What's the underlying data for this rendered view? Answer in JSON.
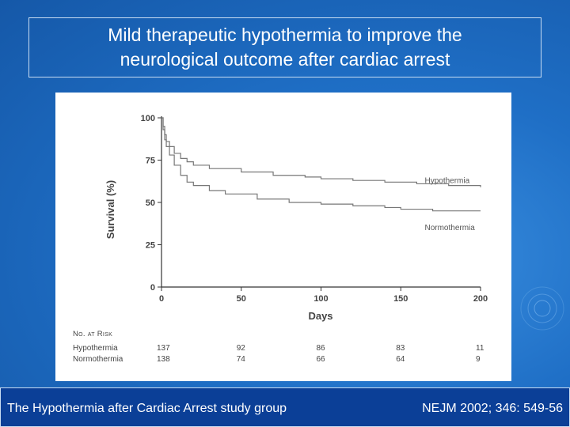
{
  "title": {
    "line1": "Mild therapeutic hypothermia to improve the",
    "line2": "neurological outcome  after cardiac arrest"
  },
  "footer": {
    "left": "The Hypothermia after Cardiac Arrest study group",
    "right": "NEJM 2002; 346: 549-56"
  },
  "chart_data": {
    "type": "line",
    "xlabel": "Days",
    "ylabel": "Survival (%)",
    "xlim": [
      0,
      200
    ],
    "ylim": [
      0,
      100
    ],
    "x_ticks": [
      0,
      50,
      100,
      150,
      200
    ],
    "y_ticks": [
      0,
      25,
      50,
      75,
      100
    ],
    "grid": false,
    "series": [
      {
        "name": "Hypothermia",
        "color": "#777777",
        "points": [
          [
            0,
            100
          ],
          [
            1,
            95
          ],
          [
            2,
            90
          ],
          [
            3,
            86
          ],
          [
            5,
            83
          ],
          [
            8,
            79
          ],
          [
            12,
            76
          ],
          [
            16,
            74
          ],
          [
            20,
            72
          ],
          [
            30,
            70
          ],
          [
            50,
            68
          ],
          [
            70,
            66
          ],
          [
            90,
            65
          ],
          [
            100,
            64
          ],
          [
            120,
            63
          ],
          [
            140,
            62
          ],
          [
            160,
            61
          ],
          [
            180,
            60
          ],
          [
            200,
            59
          ]
        ]
      },
      {
        "name": "Normothermia",
        "color": "#777777",
        "points": [
          [
            0,
            100
          ],
          [
            1,
            93
          ],
          [
            2,
            87
          ],
          [
            3,
            83
          ],
          [
            5,
            78
          ],
          [
            8,
            72
          ],
          [
            12,
            66
          ],
          [
            16,
            62
          ],
          [
            20,
            60
          ],
          [
            30,
            57
          ],
          [
            40,
            55
          ],
          [
            60,
            52
          ],
          [
            80,
            50
          ],
          [
            100,
            49
          ],
          [
            120,
            48
          ],
          [
            140,
            47
          ],
          [
            150,
            46
          ],
          [
            170,
            45
          ],
          [
            200,
            45
          ]
        ]
      }
    ],
    "risk_table": {
      "header": "No. at Risk",
      "rows": [
        {
          "label": "Hypothermia",
          "values": [
            "137",
            "92",
            "86",
            "83",
            "11"
          ]
        },
        {
          "label": "Normothermia",
          "values": [
            "138",
            "74",
            "66",
            "64",
            "9"
          ]
        }
      ]
    }
  }
}
